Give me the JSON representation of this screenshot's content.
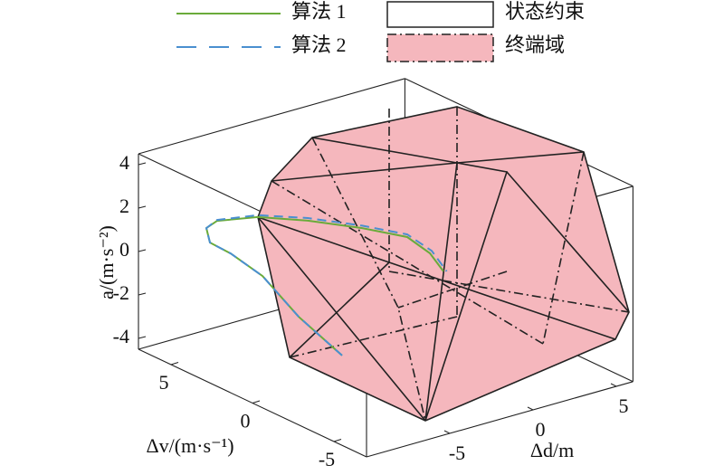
{
  "chart_data": {
    "type": "line3d",
    "x_label": "Δd/m",
    "y_label": "Δv/(m·s⁻¹)",
    "z_label": "a/(m·s⁻²)",
    "xlim": [
      -10,
      6
    ],
    "ylim": [
      -7,
      7
    ],
    "zlim": [
      -4.5,
      4.5
    ],
    "xticks": [
      -5,
      0,
      5
    ],
    "yticks": [
      -5,
      0,
      5
    ],
    "zticks": [
      -4,
      -2,
      0,
      2,
      4
    ],
    "series": [
      {
        "name": "算法 1",
        "color": "#6aab3a",
        "dash": "solid",
        "x": [
          -9,
          -8.5,
          -8,
          -7.5,
          -7,
          -6.5,
          -6,
          -5,
          -4,
          -3,
          -2,
          -1,
          0
        ],
        "y": [
          -4.48,
          -1.3,
          1.43,
          3.89,
          5.68,
          6.41,
          6.26,
          4.78,
          2.74,
          0.43,
          -1.32,
          -1.69,
          -1.5
        ],
        "z": [
          -0.94,
          -0.39,
          0.41,
          0.47,
          0.23,
          0.53,
          0.81,
          1.29,
          1.63,
          1.89,
          1.88,
          1.05,
          -0.07
        ]
      },
      {
        "name": "算法 2",
        "color": "#4a8fd0",
        "dash": "dashed",
        "x": [
          -9,
          -8.5,
          -8,
          -7.5,
          -7,
          -6.5,
          -6,
          -5,
          -4,
          -3,
          -2,
          -1,
          0
        ],
        "y": [
          -4.48,
          -1.3,
          1.43,
          3.89,
          5.68,
          6.41,
          6.26,
          4.78,
          2.74,
          0.43,
          -1.32,
          -1.8,
          -1.7
        ],
        "z": [
          -0.94,
          -0.39,
          0.41,
          0.47,
          0.23,
          0.53,
          0.85,
          1.38,
          1.75,
          2.0,
          2.0,
          1.2,
          0.0
        ]
      }
    ],
    "regions": [
      {
        "name": "状态约束",
        "color": "#ffffff"
      },
      {
        "name": "终端域",
        "color": "#f5b7bd"
      }
    ]
  }
}
